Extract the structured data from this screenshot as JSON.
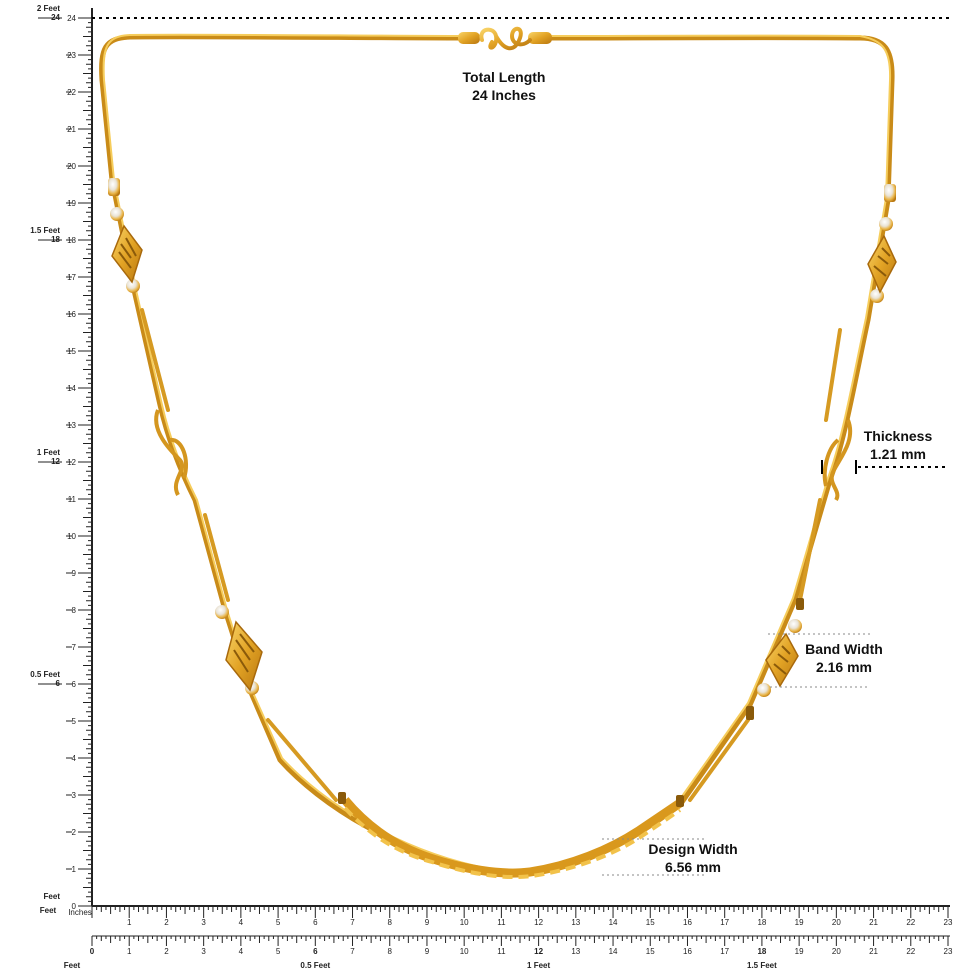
{
  "total_length": {
    "title": "Total Length",
    "value": "24 Inches"
  },
  "thickness": {
    "title": "Thickness",
    "value": "1.21 mm"
  },
  "band_width": {
    "title": "Band Width",
    "value": "2.16 mm"
  },
  "design_width": {
    "title": "Design Width",
    "value": "6.56 mm"
  },
  "left_ruler": {
    "inch_labels": [
      "0",
      "1",
      "2",
      "3",
      "4",
      "5",
      "6",
      "7",
      "8",
      "9",
      "10",
      "11",
      "12",
      "13",
      "14",
      "15",
      "16",
      "17",
      "18",
      "19",
      "20",
      "21",
      "22",
      "23",
      "24"
    ],
    "feet_labels": [
      {
        "inch": 0,
        "label": "Feet"
      },
      {
        "inch": 6,
        "label": "0.5 Feet"
      },
      {
        "inch": 12,
        "label": "1 Feet"
      },
      {
        "inch": 18,
        "label": "1.5 Feet"
      },
      {
        "inch": 24,
        "label": "2 Feet"
      }
    ]
  },
  "bottom_ruler": {
    "unit_label": "Inches",
    "inch_labels": [
      "1",
      "2",
      "3",
      "4",
      "5",
      "6",
      "7",
      "8",
      "9",
      "10",
      "11",
      "12",
      "13",
      "14",
      "15",
      "16",
      "17",
      "18",
      "19",
      "20",
      "21",
      "22",
      "23"
    ]
  },
  "bottom_ruler_2": {
    "inch_labels": [
      "0",
      "1",
      "2",
      "3",
      "4",
      "5",
      "6",
      "7",
      "8",
      "9",
      "10",
      "11",
      "12",
      "13",
      "14",
      "15",
      "16",
      "17",
      "18",
      "19",
      "20",
      "21",
      "22",
      "23"
    ],
    "feet_labels": [
      {
        "inch": 0,
        "label": "Feet"
      },
      {
        "inch": 6,
        "label": "0.5 Feet"
      },
      {
        "inch": 12,
        "label": "1 Feet"
      },
      {
        "inch": 18,
        "label": "1.5 Feet"
      }
    ]
  },
  "colors": {
    "gold": "#e0a224",
    "gold_dark": "#b9770f",
    "gold_light": "#f7cf5a",
    "ruler": "#222222"
  }
}
